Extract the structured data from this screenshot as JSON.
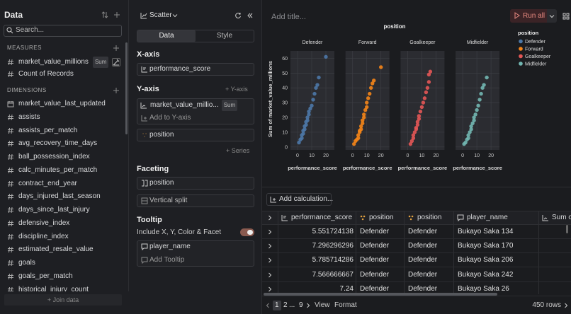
{
  "sidebar": {
    "title": "Data",
    "search_placeholder": "Search...",
    "measures_header": "MEASURES",
    "measures": [
      {
        "name": "market_value_millions",
        "badge": "Sum"
      },
      {
        "name": "Count of Records"
      }
    ],
    "dimensions_header": "DIMENSIONS",
    "dimensions": [
      "market_value_last_updated",
      "assists",
      "assists_per_match",
      "avg_recovery_time_days",
      "ball_possession_index",
      "calc_minutes_per_match",
      "contract_end_year",
      "days_injured_last_season",
      "days_since_last_injury",
      "defensive_index",
      "discipline_index",
      "estimated_resale_value",
      "goals",
      "goals_per_match",
      "historical_injury_count"
    ],
    "join_data": "+ Join data"
  },
  "builder": {
    "chart_type": "Scatter",
    "tabs": [
      "Data",
      "Style"
    ],
    "x_axis_header": "X-axis",
    "x_field": "performance_score",
    "y_axis_header": "Y-axis",
    "add_y_axis": "+ Y-axis",
    "y_field": "market_value_millio...",
    "y_badge": "Sum",
    "add_to_y_axis": "Add to Y-axis",
    "color_field": "position",
    "add_series": "+ Series",
    "faceting_header": "Faceting",
    "facet_field": "position",
    "vertical_split": "Vertical split",
    "tooltip_header": "Tooltip",
    "include_label": "Include X, Y, Color & Facet",
    "tooltip_field": "player_name",
    "add_tooltip": "Add Tooltip"
  },
  "toolbar": {
    "title_placeholder": "Add title...",
    "run_button": "Run all"
  },
  "chart_data": {
    "type": "scatter",
    "title": "position",
    "x_label": "performance_score",
    "y_label": "Sum of market_value_millions",
    "legend_title": "position",
    "legend": "top-right",
    "grid": true,
    "xlim": [
      -5,
      26
    ],
    "xticks": [
      0,
      10,
      20
    ],
    "ylim": [
      -2,
      65
    ],
    "yticks": [
      0,
      10,
      20,
      30,
      40,
      50,
      60
    ],
    "series": [
      {
        "name": "Defender",
        "color": "#4c78a8",
        "x": [
          1,
          2,
          3,
          3,
          4,
          4,
          5,
          5,
          6,
          6,
          7,
          7,
          8,
          8,
          9,
          10,
          11,
          12,
          13,
          14,
          15,
          20
        ],
        "values": [
          3,
          5,
          6,
          8,
          9,
          11,
          12,
          14,
          15,
          17,
          18,
          20,
          22,
          24,
          26,
          28,
          32,
          36,
          40,
          42,
          47,
          61
        ]
      },
      {
        "name": "Forward",
        "color": "#f58518",
        "x": [
          1,
          2,
          3,
          4,
          4,
          5,
          5,
          6,
          6,
          7,
          7,
          8,
          8,
          9,
          10,
          10,
          11,
          12,
          13,
          14,
          15,
          20
        ],
        "values": [
          2,
          4,
          5,
          6,
          8,
          10,
          11,
          12,
          14,
          16,
          18,
          20,
          22,
          25,
          27,
          30,
          33,
          36,
          40,
          43,
          45,
          54
        ]
      },
      {
        "name": "Goalkeeper",
        "color": "#e45756",
        "x": [
          2,
          3,
          4,
          4,
          5,
          6,
          6,
          7,
          7,
          8,
          8,
          9,
          10,
          11,
          12,
          13,
          14,
          15,
          15,
          16
        ],
        "values": [
          2,
          4,
          6,
          8,
          10,
          12,
          13,
          15,
          17,
          19,
          21,
          24,
          27,
          30,
          33,
          37,
          40,
          44,
          49,
          51
        ]
      },
      {
        "name": "Midfielder",
        "color": "#72b7b2",
        "x": [
          1,
          2,
          3,
          4,
          4,
          5,
          6,
          6,
          7,
          8,
          8,
          9,
          10,
          11,
          12,
          13,
          14,
          15,
          17
        ],
        "values": [
          2,
          3,
          5,
          6,
          8,
          10,
          12,
          14,
          16,
          18,
          20,
          22,
          25,
          28,
          32,
          36,
          40,
          42,
          47
        ]
      }
    ]
  },
  "add_calculation": "Add calculation...",
  "table": {
    "columns": [
      "performance_score",
      "position",
      "position",
      "player_name",
      "Sum o"
    ],
    "rows": [
      [
        5.551724138,
        "Defender",
        "Defender",
        "Bukayo Saka 134"
      ],
      [
        7.296296296,
        "Defender",
        "Defender",
        "Bukayo Saka 170"
      ],
      [
        5.785714286,
        "Defender",
        "Defender",
        "Bukayo Saka 206"
      ],
      [
        7.566666667,
        "Defender",
        "Defender",
        "Bukayo Saka 242"
      ],
      [
        7.24,
        "Defender",
        "Defender",
        "Bukayo Saka 26"
      ]
    ]
  },
  "pagination": {
    "pages": [
      "1",
      "2",
      "...",
      "9"
    ],
    "view": "View",
    "format": "Format",
    "row_count": "450 rows"
  }
}
